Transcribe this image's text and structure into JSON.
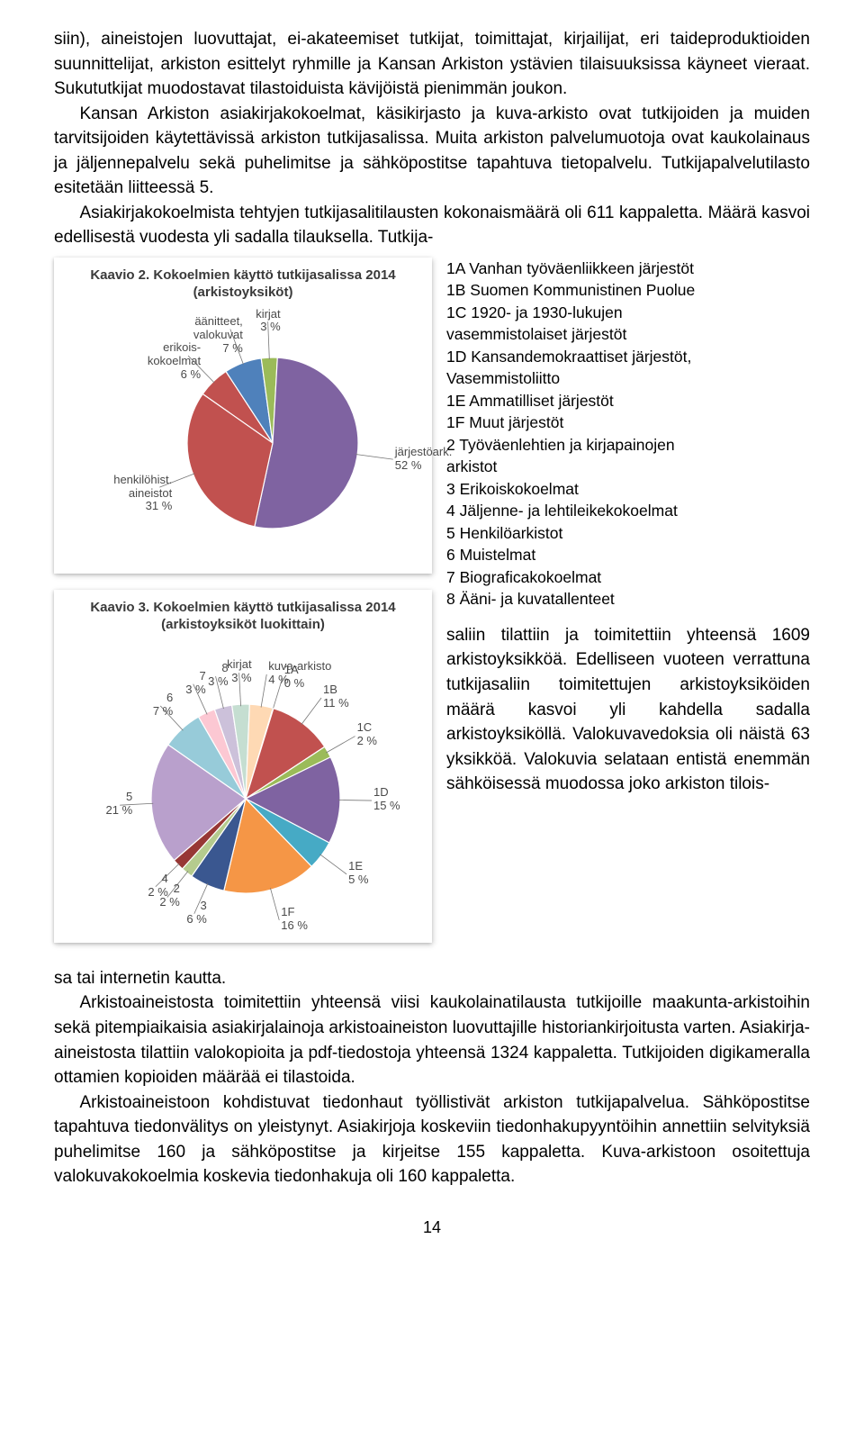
{
  "para1": "siin), aineistojen luovuttajat, ei-akateemiset tutkijat, toimittajat, kirjailijat, eri taideproduktioiden suunnittelijat, arkiston esittelyt ryhmille ja Kansan Arkiston ystävien tilaisuuksissa käyneet vieraat. Sukututkijat muodostavat tilastoiduista kävijöistä pienimmän joukon.",
  "para2": "Kansan Arkiston asiakirjakokoelmat, käsikirjasto ja kuva-arkisto ovat tutkijoiden ja muiden tarvitsijoiden käytettävissä arkiston tutkijasalissa. Muita arkiston palvelumuotoja ovat kaukolainaus ja jäljennepalvelu sekä puhelimitse ja sähköpostitse tapahtuva tietopalvelu. Tutkijapalvelutilasto esitetään liitteessä 5.",
  "para3": "Asiakirjakokoelmista tehtyjen tutkijasalitilausten kokonaismäärä oli 611 kappaletta. Määrä kasvoi edellisestä vuodesta yli sadalla tilauksella. Tutkija-",
  "para4a": "saliin tilattiin ja toimitettiin yhteensä 1609 arkistoyksikköä. Edelliseen vuoteen verrattuna tutkijasaliin toimitettujen arkistoyksiköiden määrä kasvoi yli kahdella sadalla arkistoyksiköllä. Valokuvavedoksia oli näistä 63 yksikköä. Valokuvia selataan entistä enemmän sähköisessä muodossa joko arkiston tilois-",
  "para4b": "sa tai internetin kautta.",
  "para5": "Arkistoaineistosta toimitettiin yhteensä viisi kaukolainatilausta tutkijoille maakunta-arkistoihin sekä pitempiaikaisia asiakirjalainoja arkistoaineiston luovuttajille historiankirjoitusta varten. Asiakirja-aineistosta tilattiin valokopioita ja pdf-tiedostoja yhteensä 1324 kappaletta. Tutkijoiden digikameralla ottamien kopioiden määrää ei tilastoida.",
  "para6": "Arkistoaineistoon kohdistuvat tiedonhaut työllistivät arkiston tutkijapalvelua. Sähköpostitse tapahtuva tiedonvälitys on yleistynyt. Asiakirjoja koskeviin tiedonhakupyyntöihin annettiin selvityksiä puhelimitse 160 ja sähköpostitse ja kirjeitse 155 kappaletta. Kuva-arkistoon osoitettuja valokuvakokoelmia koskevia tiedonhakuja oli 160 kappaletta.",
  "pageNumber": "14",
  "chart2": {
    "type": "pie",
    "title": "Kaavio 2. Kokoelmien käyttö tutkijasalissa 2014\n(arkistoyksiköt)",
    "background_color": "#ffffff",
    "slices": [
      {
        "label": "erikois-\nkokoelmat",
        "label2": "6 %",
        "value": 6,
        "color": "#c1514f"
      },
      {
        "label": "äänitteet,\nvalokuvat",
        "label2": "7 %",
        "value": 7,
        "color": "#4f81bb"
      },
      {
        "label": "kirjat",
        "label2": "3 %",
        "value": 3,
        "color": "#9bbb59"
      },
      {
        "label": "järjestöark.",
        "label2": "52 %",
        "value": 52,
        "color": "#7f63a1"
      },
      {
        "label": "henkilöhist.\naineistot",
        "label2": "31 %",
        "value": 31,
        "color": "#c1514f"
      }
    ]
  },
  "chart3": {
    "type": "pie",
    "title": "Kaavio 3. Kokoelmien käyttö tutkijasalissa 2014\n(arkistoyksiköt luokittain)",
    "background_color": "#ffffff",
    "slices": [
      {
        "label": "7",
        "label2": "3 %",
        "value": 3,
        "color": "#fcc8d3"
      },
      {
        "label": "8",
        "label2": "3 %",
        "value": 3,
        "color": "#ccc1da"
      },
      {
        "label": "kirjat",
        "label2": "3 %",
        "value": 3,
        "color": "#c5ded1"
      },
      {
        "label": "kuva-arkisto",
        "label2": "4 %",
        "value": 4,
        "color": "#fed9b4"
      },
      {
        "label": "1A",
        "label2": "0 %",
        "value": 0.1,
        "color": "#4f81bb"
      },
      {
        "label": "1B",
        "label2": "11 %",
        "value": 11,
        "color": "#c1514f"
      },
      {
        "label": "1C",
        "label2": "2 %",
        "value": 2,
        "color": "#9bbb59"
      },
      {
        "label": "1D",
        "label2": "15 %",
        "value": 15,
        "color": "#7f63a1"
      },
      {
        "label": "1E",
        "label2": "5 %",
        "value": 5,
        "color": "#46aac5"
      },
      {
        "label": "1F",
        "label2": "16 %",
        "value": 16,
        "color": "#f59646"
      },
      {
        "label": "3",
        "label2": "6 %",
        "value": 6,
        "color": "#3a5790"
      },
      {
        "label": "2",
        "label2": "2 %",
        "value": 2,
        "color": "#b5cb8e"
      },
      {
        "label": "4",
        "label2": "2 %",
        "value": 2,
        "color": "#973735"
      },
      {
        "label": "5",
        "label2": "21 %",
        "value": 21,
        "color": "#b9a0cc"
      },
      {
        "label": "6",
        "label2": "7 %",
        "value": 7,
        "color": "#97cbd9"
      }
    ]
  },
  "legend": [
    "1A Vanhan työväenliikkeen järjestöt",
    "1B Suomen Kommunistinen Puolue",
    "1C 1920- ja 1930-lukujen",
    "vasemmistolaiset järjestöt",
    "1D Kansandemokraattiset järjestöt,",
    "Vasemmistoliitto",
    "1E Ammatilliset järjestöt",
    "1F Muut järjestöt",
    "2 Työväenlehtien ja kirjapainojen",
    "arkistot",
    "3 Erikoiskokoelmat",
    "4 Jäljenne- ja lehtileikekokoelmat",
    "5 Henkilöarkistot",
    "6 Muistelmat",
    "7 Biograficakokoelmat",
    "8 Ääni- ja kuvatallenteet"
  ]
}
